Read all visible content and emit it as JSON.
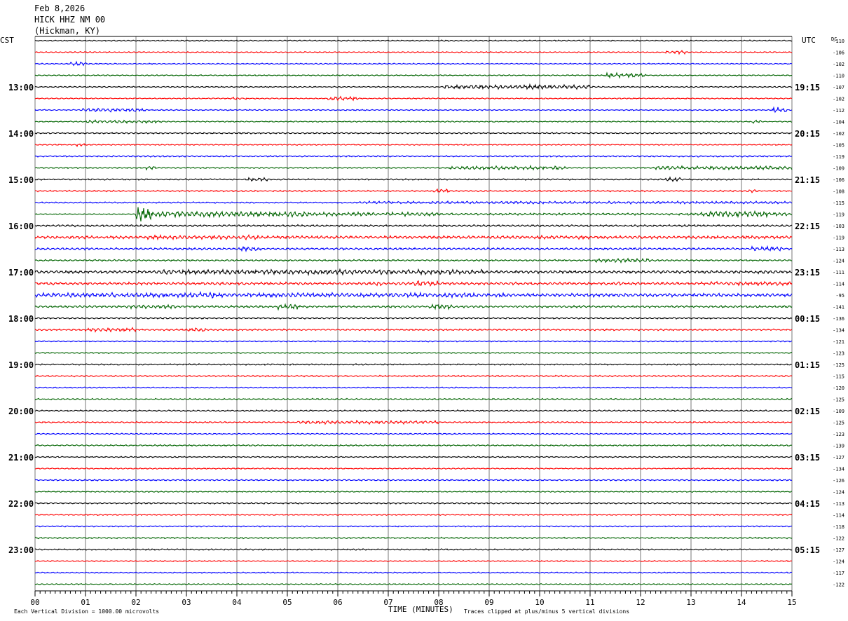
{
  "header": {
    "date": "Feb 8,2026",
    "station": "HICK HHZ NM 00",
    "location": "(Hickman, KY)"
  },
  "left_label": "CST",
  "right_label": "UTC",
  "dc_label": "DC",
  "footer": {
    "scale": "Each Vertical Division = 1000.00 microvolts",
    "xtitle": "TIME (MINUTES)",
    "clip": "Traces clipped at plus/minus 5 vertical divisions"
  },
  "chart_data": {
    "type": "line",
    "x_ticks": [
      "00",
      "01",
      "02",
      "03",
      "04",
      "05",
      "06",
      "07",
      "08",
      "09",
      "10",
      "11",
      "12",
      "13",
      "14",
      "15"
    ],
    "xlim": [
      0,
      15
    ],
    "xlabel": "TIME (MINUTES)",
    "grid": true,
    "trace_colors": [
      "#000000",
      "#ff0000",
      "#0000ff",
      "#006400"
    ],
    "cst_hours": [
      "13:00",
      "14:00",
      "15:00",
      "16:00",
      "17:00",
      "18:00",
      "19:00",
      "20:00",
      "21:00",
      "22:00",
      "23:00"
    ],
    "utc_hours": [
      "19:15",
      "20:15",
      "21:15",
      "22:15",
      "23:15",
      "00:15",
      "01:15",
      "02:15",
      "03:15",
      "04:15",
      "05:15"
    ],
    "dc_offsets": [
      "-110",
      "-106",
      "-102",
      "-110",
      "-107",
      "-102",
      "-112",
      "-104",
      "-102",
      "-105",
      "-119",
      "-109",
      "-106",
      "-108",
      "-115",
      "-119",
      "-103",
      "-119",
      "-113",
      "-124",
      "-111",
      "-114",
      "-95",
      "-141",
      "-136",
      "-134",
      "-121",
      "-123",
      "-125",
      "-115",
      "-120",
      "-125",
      "-109",
      "-125",
      "-123",
      "-139",
      "-127",
      "-134",
      "-126",
      "-124",
      "-113",
      "-114",
      "-118",
      "-122",
      "-127",
      "-124",
      "-117",
      "-122"
    ],
    "activity": [
      [
        [
          0,
          15,
          0.5
        ]
      ],
      [
        [
          0,
          15,
          0.5
        ],
        [
          12.5,
          12.9,
          1.4
        ]
      ],
      [
        [
          0,
          15,
          0.5
        ],
        [
          0.7,
          1.0,
          1.8
        ]
      ],
      [
        [
          0,
          15,
          0.5
        ],
        [
          11.3,
          12.1,
          1.8
        ]
      ],
      [
        [
          0,
          15,
          0.5
        ],
        [
          8.1,
          11.0,
          1.8
        ]
      ],
      [
        [
          0,
          15,
          0.5
        ],
        [
          5.8,
          6.4,
          1.6
        ],
        [
          3.9,
          4.2,
          1.2
        ]
      ],
      [
        [
          0,
          15,
          0.5
        ],
        [
          0.9,
          2.2,
          1.5
        ],
        [
          14.6,
          14.9,
          2.2
        ]
      ],
      [
        [
          0,
          15,
          0.5
        ],
        [
          1.0,
          2.5,
          1.2
        ],
        [
          14.2,
          14.4,
          1.6
        ]
      ],
      [
        [
          0,
          15,
          0.6
        ]
      ],
      [
        [
          0,
          15,
          0.5
        ],
        [
          0.8,
          1.0,
          1.2
        ]
      ],
      [
        [
          0,
          15,
          0.6
        ]
      ],
      [
        [
          0,
          15,
          0.5
        ],
        [
          2.2,
          2.4,
          1.5
        ],
        [
          8.2,
          10.5,
          1.5
        ],
        [
          12.3,
          15,
          1.5
        ]
      ],
      [
        [
          0,
          15,
          0.6
        ],
        [
          4.2,
          4.6,
          1.4
        ],
        [
          12.5,
          12.8,
          1.6
        ]
      ],
      [
        [
          0,
          15,
          0.6
        ],
        [
          7.9,
          8.2,
          1.8
        ],
        [
          14.1,
          14.3,
          1.6
        ]
      ],
      [
        [
          0,
          15,
          0.6
        ],
        [
          6.4,
          15,
          1.1
        ]
      ],
      [
        [
          2.0,
          2.3,
          5.5
        ],
        [
          2.3,
          5.5,
          2.2
        ],
        [
          5.5,
          8.0,
          1.6
        ],
        [
          8.0,
          13.2,
          0.9
        ],
        [
          13.2,
          14.5,
          2.5
        ],
        [
          14.5,
          15,
          1.4
        ]
      ],
      [
        [
          0,
          15,
          0.8
        ]
      ],
      [
        [
          0,
          15,
          1.2
        ],
        [
          2.2,
          4.5,
          1.8
        ],
        [
          10.0,
          11.0,
          1.5
        ]
      ],
      [
        [
          0,
          15,
          0.9
        ],
        [
          4.0,
          4.5,
          1.8
        ],
        [
          14.2,
          14.8,
          1.8
        ]
      ],
      [
        [
          0,
          15,
          0.7
        ],
        [
          11.1,
          12.2,
          1.6
        ]
      ],
      [
        [
          0,
          15,
          1.2
        ],
        [
          2.5,
          9.0,
          2.0
        ]
      ],
      [
        [
          0,
          15,
          1.1
        ],
        [
          6.6,
          6.9,
          1.9
        ],
        [
          7.5,
          8.0,
          2.2
        ],
        [
          11.3,
          11.6,
          1.7
        ],
        [
          13.4,
          15,
          1.6
        ]
      ],
      [
        [
          0,
          15,
          1.4
        ],
        [
          0,
          9.0,
          1.8
        ],
        [
          3.1,
          3.6,
          2.8
        ],
        [
          9.2,
          9.4,
          2.2
        ]
      ],
      [
        [
          0,
          15,
          0.9
        ],
        [
          1.8,
          2.8,
          1.6
        ],
        [
          4.8,
          5.2,
          2.2
        ],
        [
          7.8,
          8.3,
          2.0
        ]
      ],
      [
        [
          0,
          15,
          0.6
        ]
      ],
      [
        [
          0,
          15,
          0.7
        ],
        [
          1.0,
          2.0,
          1.6
        ],
        [
          3.0,
          3.4,
          1.6
        ]
      ],
      [
        [
          0,
          15,
          0.5
        ]
      ],
      [
        [
          0,
          15,
          0.5
        ]
      ],
      [
        [
          0,
          15,
          0.6
        ]
      ],
      [
        [
          0,
          15,
          0.6
        ]
      ],
      [
        [
          0,
          15,
          0.5
        ]
      ],
      [
        [
          0,
          15,
          0.6
        ]
      ],
      [
        [
          0,
          15,
          0.6
        ]
      ],
      [
        [
          0,
          15,
          0.6
        ],
        [
          5.2,
          8.0,
          1.4
        ]
      ],
      [
        [
          0,
          15,
          0.5
        ]
      ],
      [
        [
          0,
          15,
          0.6
        ]
      ],
      [
        [
          0,
          15,
          0.5
        ]
      ],
      [
        [
          0,
          15,
          0.5
        ]
      ],
      [
        [
          0,
          15,
          0.6
        ]
      ],
      [
        [
          0,
          15,
          0.5
        ]
      ],
      [
        [
          0,
          15,
          0.6
        ]
      ],
      [
        [
          0,
          15,
          0.5
        ]
      ],
      [
        [
          0,
          15,
          0.5
        ]
      ],
      [
        [
          0,
          15,
          0.6
        ]
      ],
      [
        [
          0,
          15,
          0.6
        ]
      ],
      [
        [
          0,
          15,
          0.5
        ]
      ],
      [
        [
          0,
          15,
          0.5
        ]
      ],
      [
        [
          0,
          15,
          0.5
        ]
      ]
    ]
  }
}
